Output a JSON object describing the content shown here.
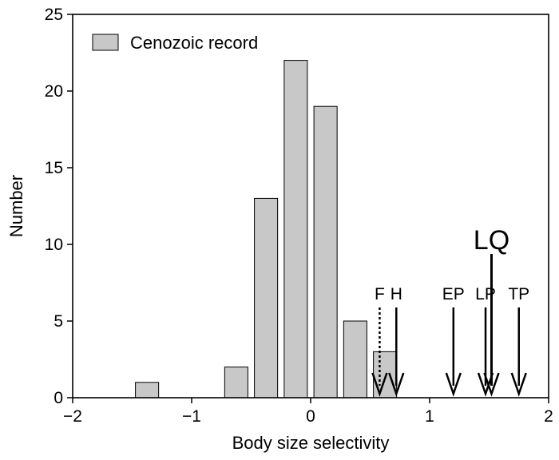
{
  "chart_data": {
    "type": "bar",
    "xlabel": "Body size selectivity",
    "ylabel": "Number",
    "xlim": [
      -2,
      2
    ],
    "ylim": [
      0,
      25
    ],
    "x_ticks": [
      -2,
      -1,
      0,
      1,
      2
    ],
    "x_tick_labels": [
      "−2",
      "−1",
      "0",
      "1",
      "2"
    ],
    "y_ticks": [
      0,
      5,
      10,
      15,
      20,
      25
    ],
    "y_tick_labels": [
      "0",
      "5",
      "10",
      "15",
      "20",
      "25"
    ],
    "bin_width": 0.25,
    "series": [
      {
        "name": "Cenozoic record",
        "color": "#c8c8c8",
        "bin_centers": [
          -1.375,
          -0.625,
          -0.375,
          -0.125,
          0.125,
          0.375,
          0.625
        ],
        "values": [
          1,
          2,
          13,
          22,
          19,
          5,
          3
        ]
      }
    ],
    "legend": {
      "position": "top-left",
      "label": "Cenozoic record"
    },
    "annotations": [
      {
        "label": "F",
        "x": 0.58,
        "style": "dotted",
        "label_size": "normal"
      },
      {
        "label": "H",
        "x": 0.72,
        "style": "solid",
        "label_size": "normal"
      },
      {
        "label": "EP",
        "x": 1.2,
        "style": "solid",
        "label_size": "normal"
      },
      {
        "label": "LP",
        "x": 1.47,
        "style": "solid",
        "label_size": "normal"
      },
      {
        "label": "LQ",
        "x": 1.52,
        "style": "solid",
        "label_size": "large"
      },
      {
        "label": "TP",
        "x": 1.75,
        "style": "solid",
        "label_size": "normal"
      }
    ]
  }
}
